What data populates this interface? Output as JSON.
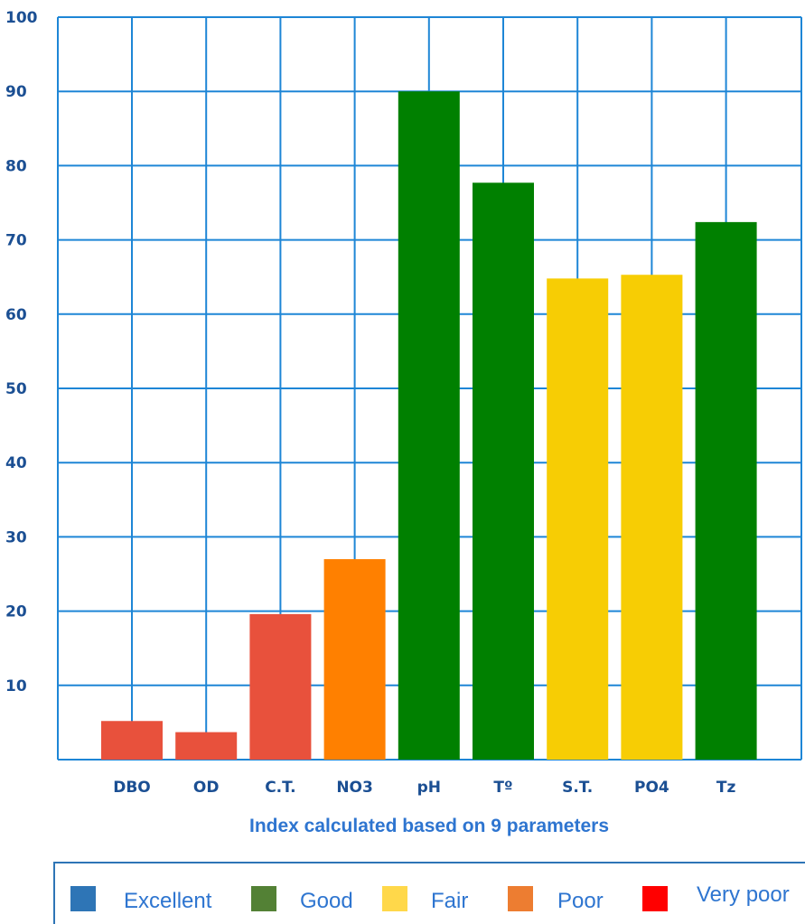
{
  "chart_data": {
    "type": "bar",
    "categories": [
      "DBO",
      "OD",
      "C.T.",
      "NO3",
      "pH",
      "Tº",
      "S.T.",
      "PO4",
      "Tz"
    ],
    "values": [
      5.2,
      3.7,
      19.6,
      27.0,
      90.0,
      77.7,
      64.8,
      65.3,
      72.4
    ],
    "bar_colors": [
      "#e8513c",
      "#e8513c",
      "#e8513c",
      "#ff8000",
      "#008000",
      "#008000",
      "#f7cd04",
      "#f7cd04",
      "#008000"
    ],
    "ylim": [
      0,
      100
    ],
    "yticks": [
      10,
      20,
      30,
      40,
      50,
      60,
      70,
      80,
      90,
      100
    ],
    "ytick_labels": [
      "10",
      "20",
      "30",
      "40",
      "50",
      "60",
      "70",
      "80",
      "90",
      "100"
    ],
    "grid": true,
    "subtitle": "Index calculated based on 9 parameters",
    "legend": [
      {
        "label": "Excellent",
        "color": "#2e75b6"
      },
      {
        "label": "Good",
        "color": "#538135"
      },
      {
        "label": "Fair",
        "color": "#ffd84a"
      },
      {
        "label": "Poor",
        "color": "#ed7d31"
      },
      {
        "label": "Very poor",
        "color": "#ff0000"
      }
    ],
    "legend_position": "bottom"
  },
  "colors": {
    "grid": "#1e86d6",
    "axis_text": "#1b4f93",
    "subtitle_text": "#2e75d0",
    "legend_border": "#2e75b6"
  }
}
